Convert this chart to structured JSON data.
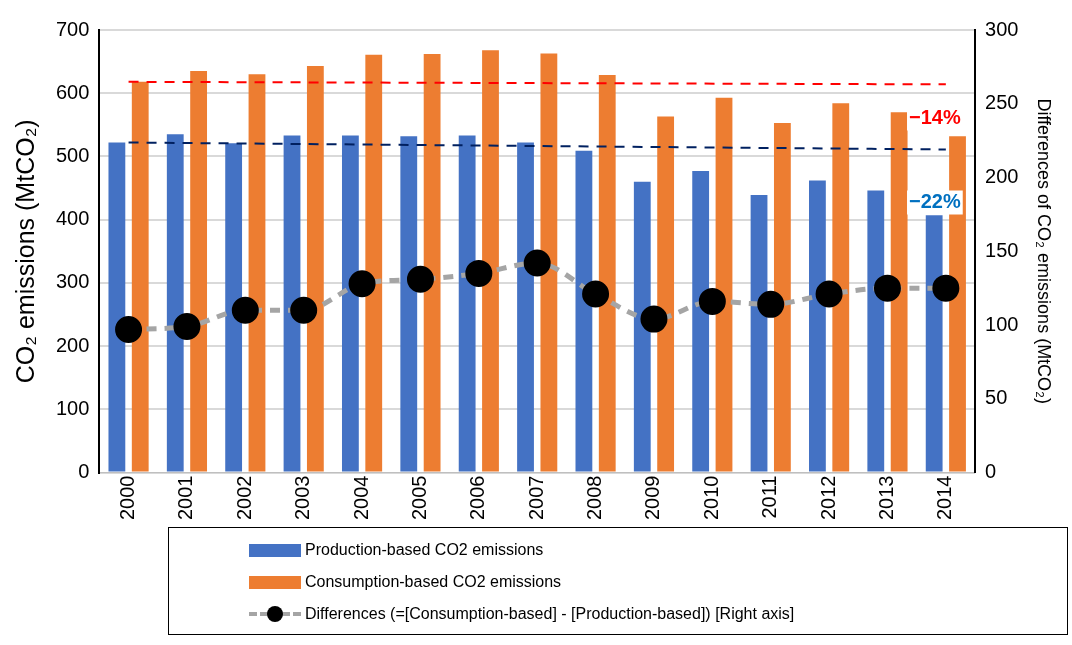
{
  "chart_data": {
    "type": "bar",
    "xlabel": null,
    "ylabel": "CO₂ emissions (MtCO₂)",
    "y2label": "Differences of CO₂ emissions (MtCO₂)",
    "categories": [
      "2000",
      "2001",
      "2002",
      "2003",
      "2004",
      "2005",
      "2006",
      "2007",
      "2008",
      "2009",
      "2010",
      "2011",
      "2012",
      "2013",
      "2014"
    ],
    "series": [
      {
        "name": "Production-based CO2 emissions",
        "color": "#4472c4",
        "values": [
          522,
          535,
          521,
          533,
          533,
          532,
          533,
          522,
          509,
          460,
          477,
          439,
          462,
          446,
          407
        ]
      },
      {
        "name": "Consumption-based CO2 emissions",
        "color": "#ed7d31",
        "values": [
          618,
          635,
          630,
          643,
          661,
          662,
          668,
          663,
          629,
          563,
          593,
          553,
          584,
          570,
          532
        ]
      },
      {
        "name": "Differences (=[Consumption-based] - [Production-based]) [Right axis]",
        "type": "line",
        "axis": "y2",
        "color": "#a5a5a5",
        "marker": "circle",
        "line_style": "dashed",
        "values": [
          97,
          99,
          110,
          110,
          128,
          131,
          135,
          142,
          121,
          104,
          116,
          114,
          121,
          125,
          125
        ]
      },
      {
        "type": "line",
        "color": "#ff0000",
        "marker": "none",
        "line_style": "dashed",
        "values": [
          618,
          null,
          null,
          null,
          null,
          null,
          null,
          null,
          null,
          null,
          null,
          null,
          null,
          null,
          614
        ]
      },
      {
        "type": "line",
        "color": "#002060",
        "marker": "none",
        "line_style": "dashed",
        "values": [
          522,
          null,
          null,
          null,
          null,
          null,
          null,
          null,
          null,
          null,
          null,
          null,
          null,
          null,
          511
        ]
      }
    ],
    "annotations": [
      "−14%",
      "−22%"
    ],
    "ylim": [
      0,
      700
    ],
    "yticks": [
      0,
      100,
      200,
      300,
      400,
      500,
      600,
      700
    ],
    "y2lim": [
      0,
      300
    ],
    "y2ticks": [
      0,
      50,
      100,
      150,
      200,
      250,
      300
    ],
    "grid": "y",
    "legend": "bottom"
  }
}
